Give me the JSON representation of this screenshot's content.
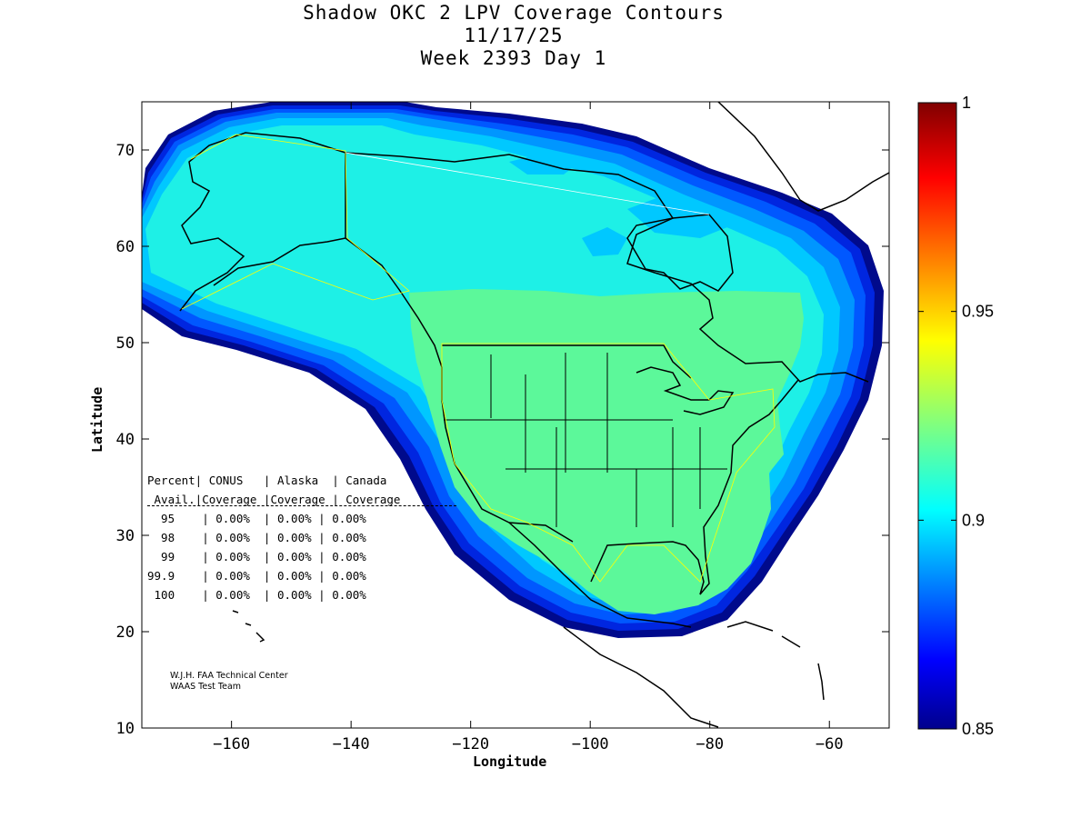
{
  "header": {
    "title": "Shadow OKC 2 LPV Coverage Contours",
    "date": "11/17/25",
    "week": "Week 2393 Day 1"
  },
  "map": {
    "xlabel": "Longitude",
    "ylabel": "Latitude",
    "xlim": [
      -175,
      -50
    ],
    "ylim": [
      10,
      75
    ],
    "xticks": [
      -160,
      -140,
      -120,
      -100,
      -80,
      -60
    ],
    "yticks": [
      10,
      20,
      30,
      40,
      50,
      60,
      70
    ],
    "levels": [
      {
        "value": 0.85,
        "color": "#000a8c"
      },
      {
        "value": 0.86,
        "color": "#0026e0"
      },
      {
        "value": 0.87,
        "color": "#0058ff"
      },
      {
        "value": 0.88,
        "color": "#0096ff"
      },
      {
        "value": 0.89,
        "color": "#00c8ff"
      },
      {
        "value": 0.9,
        "color": "#1ef0e6"
      },
      {
        "value": 0.92,
        "color": "#5cf89a"
      }
    ]
  },
  "colorbar": {
    "ticks": [
      {
        "value": 1,
        "label": "1"
      },
      {
        "value": 0.95,
        "label": "0.95"
      },
      {
        "value": 0.9,
        "label": "0.9"
      },
      {
        "value": 0.85,
        "label": "0.85"
      }
    ],
    "min": 0.85,
    "max": 1
  },
  "stats": {
    "header1": "Percent| CONUS   | Alaska  | Canada",
    "header2": " Avail.|Coverage |Coverage | Coverage",
    "rows": [
      "  95    | 0.00%  | 0.00% | 0.00%",
      "  98    | 0.00%  | 0.00% | 0.00%",
      "  99    | 0.00%  | 0.00% | 0.00%",
      "99.9    | 0.00%  | 0.00% | 0.00%",
      " 100    | 0.00%  | 0.00% | 0.00%"
    ]
  },
  "credits": {
    "line1": "W.J.H. FAA Technical Center",
    "line2": "WAAS Test Team"
  }
}
